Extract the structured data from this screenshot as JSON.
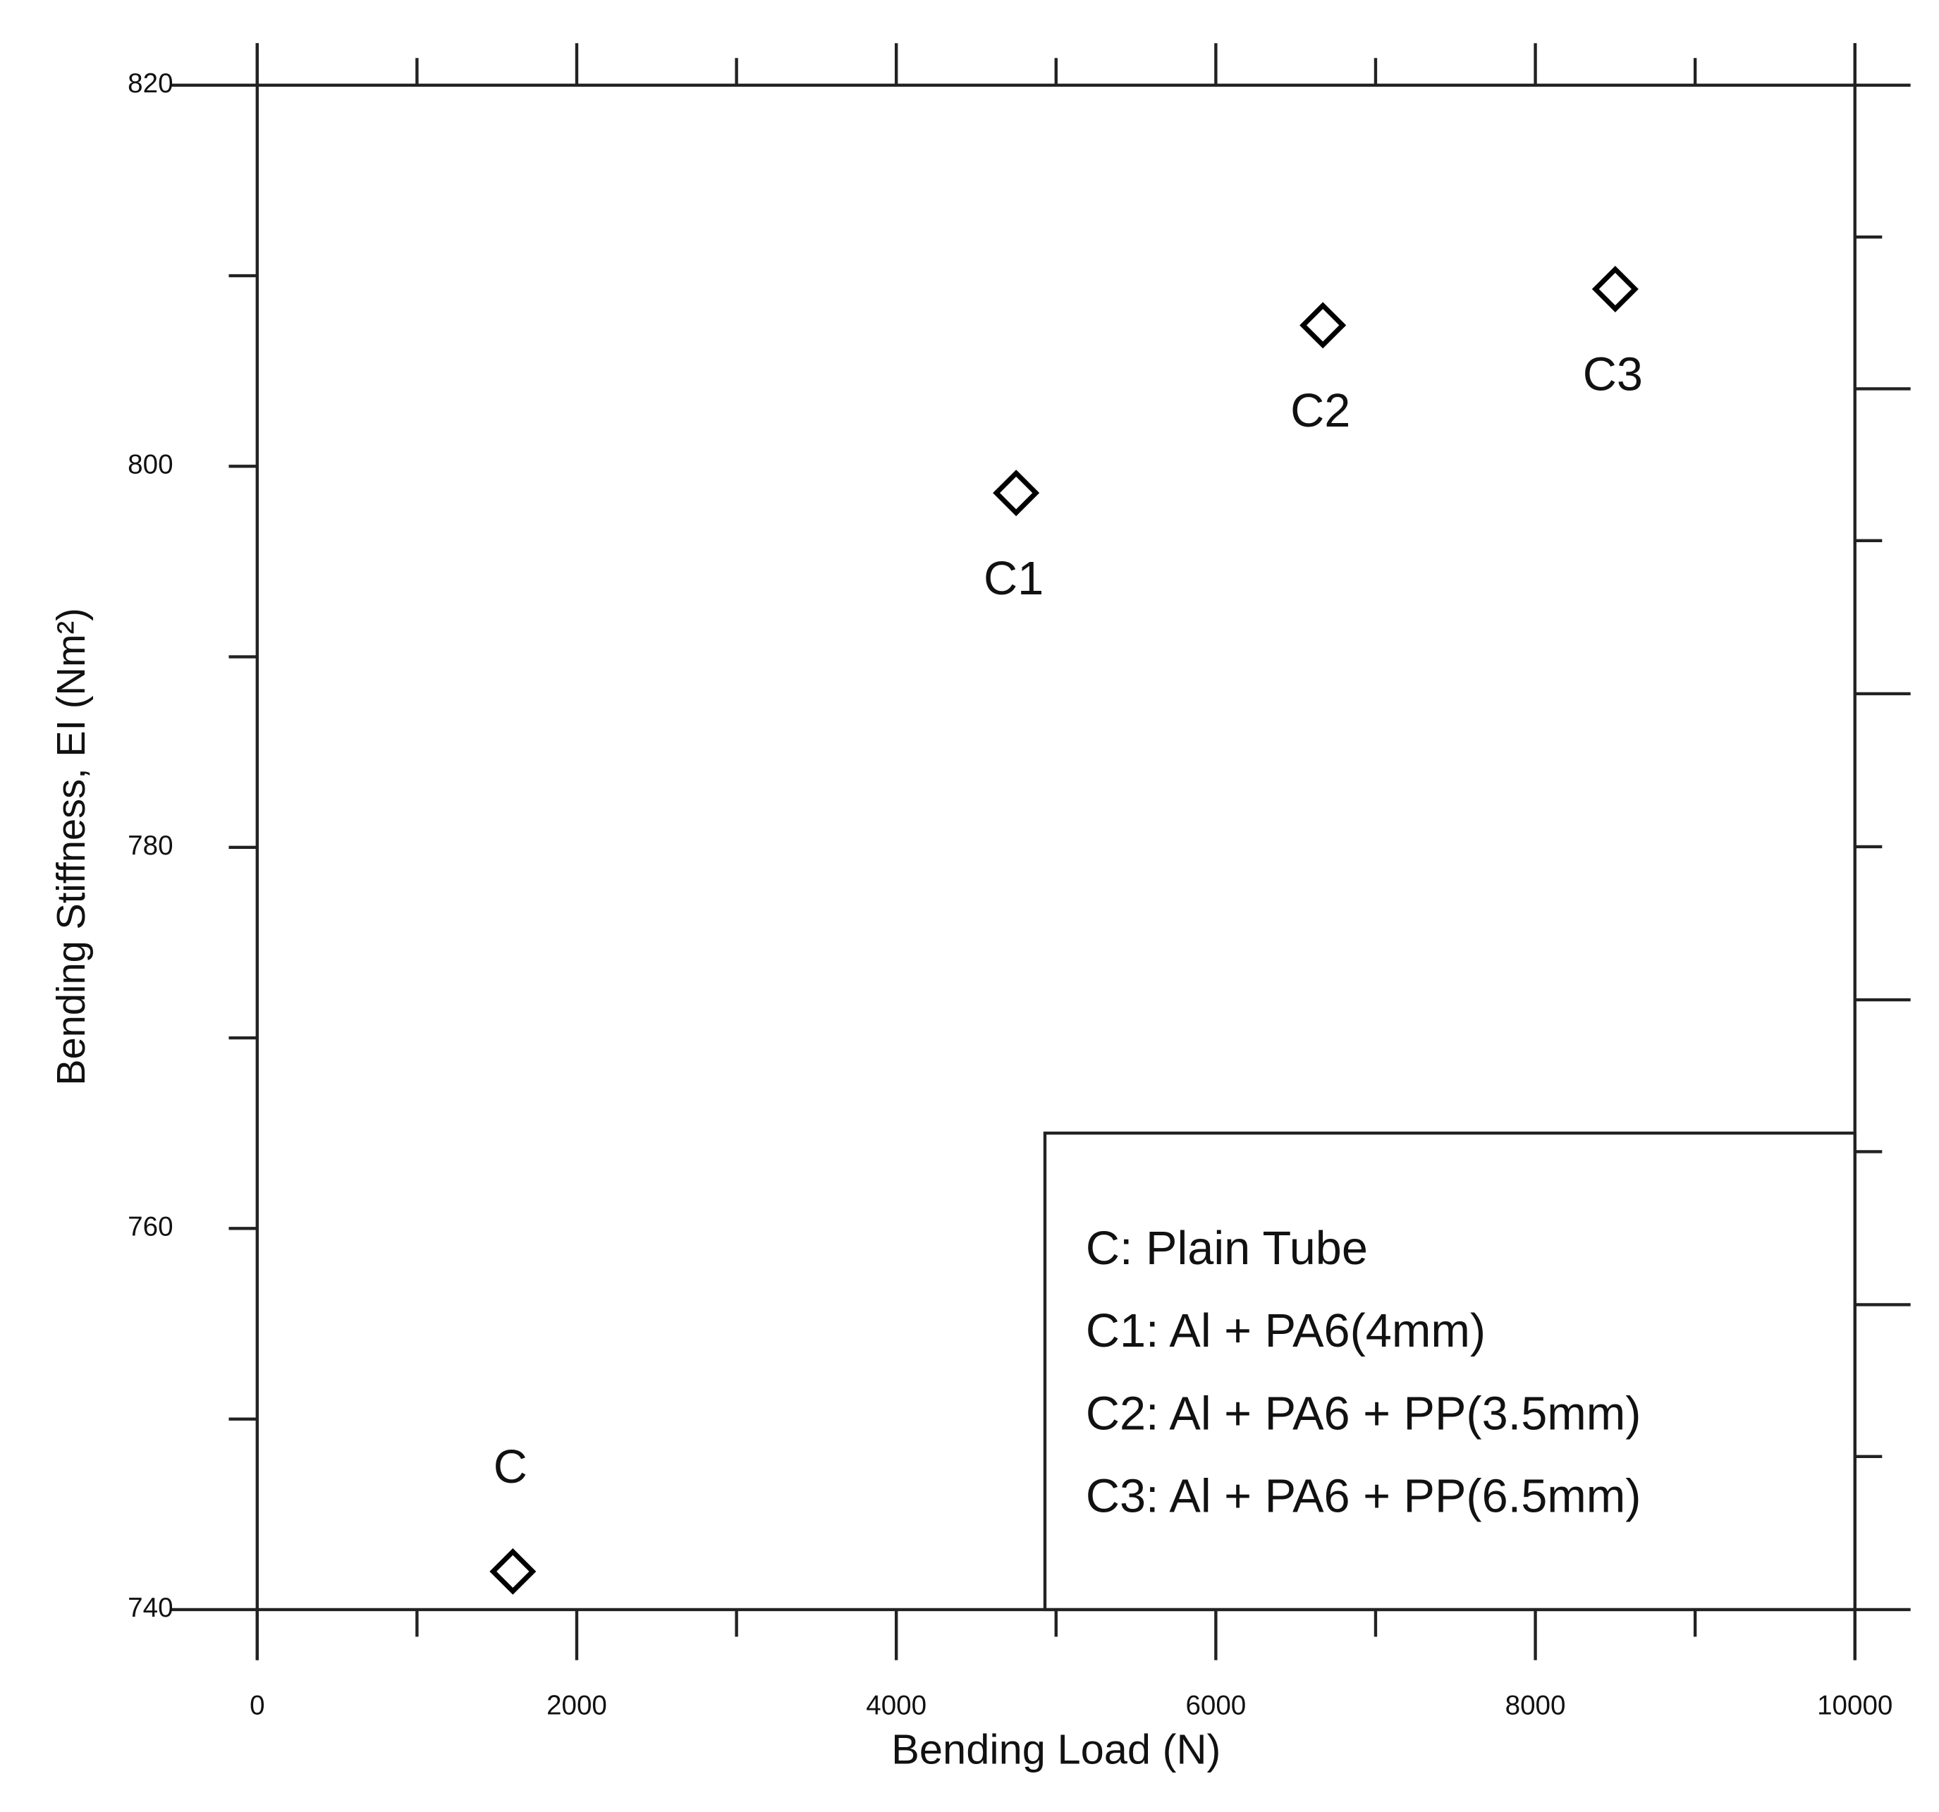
{
  "chart_data": {
    "type": "scatter",
    "x_label": "Bending Load (N)",
    "y_label": "Bending Stiffness, EI (Nm²)",
    "x": [
      1600,
      4750,
      6670,
      8500
    ],
    "values": [
      742.0,
      798.6,
      807.4,
      809.3
    ],
    "point_labels": [
      "C",
      "C1",
      "C2",
      "C3"
    ],
    "label_positions": [
      "above",
      "below",
      "below",
      "below"
    ],
    "color": "#000000",
    "xlim": [
      0,
      10000
    ],
    "xticks": [
      0,
      2000,
      4000,
      6000,
      8000,
      10000
    ],
    "xminorticks": [
      1000,
      3000,
      5000,
      7000,
      9000
    ],
    "ylim": [
      740,
      820
    ],
    "yticks": [
      740,
      760,
      780,
      800,
      820
    ],
    "yminorticks": [
      750,
      770,
      790,
      810
    ],
    "legend_text": [
      "C: Plain Tube",
      "C1: Al + PA6(4mm)",
      "C2: Al + PA6 + PP(3.5mm)",
      "C3: Al + PA6 + PP(6.5mm)"
    ],
    "legend_position": "lower right"
  }
}
